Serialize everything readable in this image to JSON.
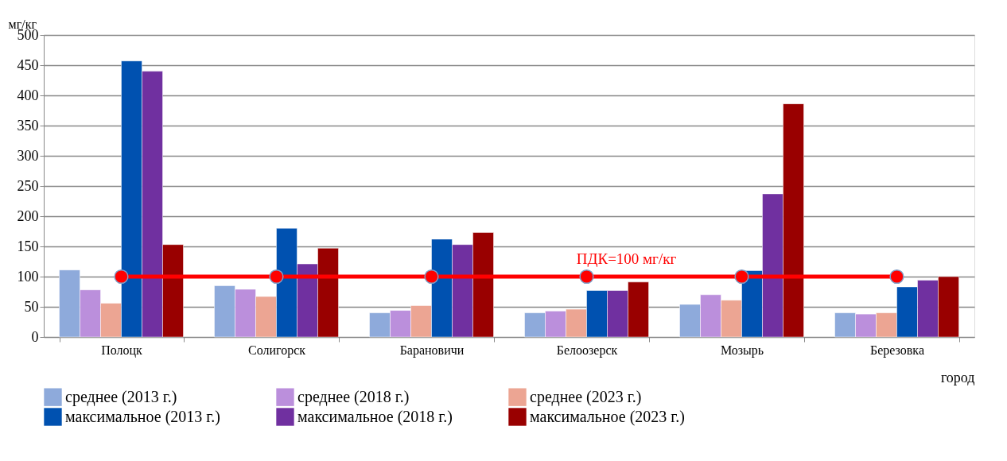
{
  "chart_data": {
    "type": "bar",
    "ylabel": "мг/кг",
    "xlabel": "город",
    "categories": [
      "Полоцк",
      "Солигорск",
      "Барановичи",
      "Белоозерск",
      "Мозырь",
      "Березовка"
    ],
    "series": [
      {
        "name": "среднее (2013 г.)",
        "color": "#8eaadb",
        "values": [
          111,
          85,
          40,
          40,
          54,
          40
        ]
      },
      {
        "name": "среднее (2018 г.)",
        "color": "#bb8fdc",
        "values": [
          78,
          79,
          44,
          43,
          70,
          38
        ]
      },
      {
        "name": "среднее (2023 г.)",
        "color": "#eca593",
        "values": [
          56,
          67,
          52,
          46,
          61,
          40
        ]
      },
      {
        "name": "максимальное (2013 г.)",
        "color": "#0051b0",
        "values": [
          457,
          180,
          162,
          77,
          110,
          83
        ]
      },
      {
        "name": "максимальное (2018 г.)",
        "color": "#7030a0",
        "values": [
          440,
          121,
          153,
          77,
          237,
          94
        ]
      },
      {
        "name": "максимальное (2023 г.)",
        "color": "#990000",
        "values": [
          153,
          147,
          173,
          91,
          386,
          100
        ]
      },
      {
        "name": "ПДК=100 мг/кг",
        "type": "line",
        "color": "#ff0000",
        "marker": "circle",
        "values": [
          100,
          100,
          100,
          100,
          100,
          100
        ]
      }
    ],
    "ylim": [
      0,
      500
    ],
    "yticks": [
      0,
      50,
      100,
      150,
      200,
      250,
      300,
      350,
      400,
      450,
      500
    ],
    "grid": "y",
    "legend": "bottom"
  }
}
